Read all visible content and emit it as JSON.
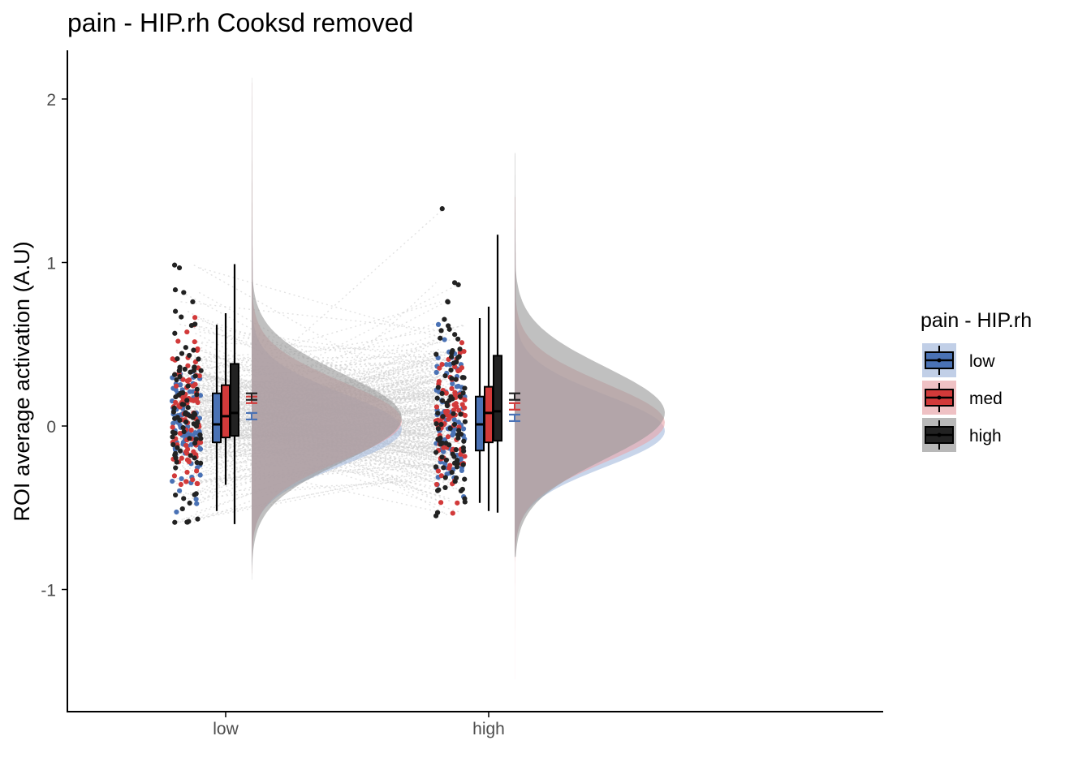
{
  "chart_data": {
    "type": "raincloud",
    "title": "pain  -  HIP.rh Cooksd removed",
    "xlabel": "",
    "ylabel": "ROI average activation (A.U)",
    "categories": [
      "low",
      "high"
    ],
    "ylim": [
      -1.6,
      2.3
    ],
    "yticks": [
      {
        "value": 2,
        "label": "2"
      },
      {
        "value": 1,
        "label": "1"
      },
      {
        "value": 0,
        "label": "0"
      },
      {
        "value": -1,
        "label": "-1"
      }
    ],
    "grid": false,
    "legend": {
      "title": "pain  -  HIP.rh",
      "position": "right",
      "entries": [
        "low",
        "med",
        "high"
      ]
    },
    "series": [
      {
        "name": "low",
        "color": "#4a72b5",
        "box": [
          {
            "category": "low",
            "lower_whisker": -0.52,
            "q1": -0.1,
            "median": 0.01,
            "q3": 0.2,
            "upper_whisker": 0.62
          },
          {
            "category": "high",
            "lower_whisker": -0.47,
            "q1": -0.15,
            "median": 0.01,
            "q3": 0.18,
            "upper_whisker": 0.66
          }
        ],
        "mean": [
          {
            "category": "low",
            "value": 0.06
          },
          {
            "category": "high",
            "value": 0.05
          }
        ],
        "density": [
          {
            "category": "low",
            "peak": -0.02,
            "sd": 0.22,
            "min": -0.85,
            "max": 1.2
          },
          {
            "category": "high",
            "peak": -0.03,
            "sd": 0.22,
            "min": -0.8,
            "max": 1.2
          }
        ]
      },
      {
        "name": "med",
        "color": "#d23a3a",
        "box": [
          {
            "category": "low",
            "lower_whisker": -0.36,
            "q1": -0.07,
            "median": 0.06,
            "q3": 0.25,
            "upper_whisker": 0.69
          },
          {
            "category": "high",
            "lower_whisker": -0.52,
            "q1": -0.1,
            "median": 0.08,
            "q3": 0.24,
            "upper_whisker": 0.73
          }
        ],
        "mean": [
          {
            "category": "low",
            "value": 0.16
          },
          {
            "category": "high",
            "value": 0.12
          }
        ],
        "density": [
          {
            "category": "low",
            "peak": 0.03,
            "sd": 0.24,
            "min": -0.9,
            "max": 2.1
          },
          {
            "category": "high",
            "peak": 0.02,
            "sd": 0.24,
            "min": -1.55,
            "max": 1.4
          }
        ]
      },
      {
        "name": "high",
        "color": "#222222",
        "box": [
          {
            "category": "low",
            "lower_whisker": -0.6,
            "q1": -0.06,
            "median": 0.08,
            "q3": 0.38,
            "upper_whisker": 0.99
          },
          {
            "category": "high",
            "lower_whisker": -0.53,
            "q1": -0.09,
            "median": 0.09,
            "q3": 0.43,
            "upper_whisker": 1.17
          }
        ],
        "mean": [
          {
            "category": "low",
            "value": 0.18
          },
          {
            "category": "high",
            "value": 0.18
          }
        ],
        "density": [
          {
            "category": "low",
            "peak": 0.05,
            "sd": 0.27,
            "min": -0.94,
            "max": 2.13
          },
          {
            "category": "high",
            "peak": 0.08,
            "sd": 0.28,
            "min": -0.8,
            "max": 1.67
          }
        ]
      }
    ],
    "points_per_series": 90
  },
  "colors": {
    "low": "#4a72b5",
    "med": "#d23a3a",
    "high": "#222222",
    "density_low": "#a7bbdd",
    "density_med": "#e8a7ab",
    "density_high": "#9a9a9a",
    "paired_line": "#cfcfcf"
  }
}
